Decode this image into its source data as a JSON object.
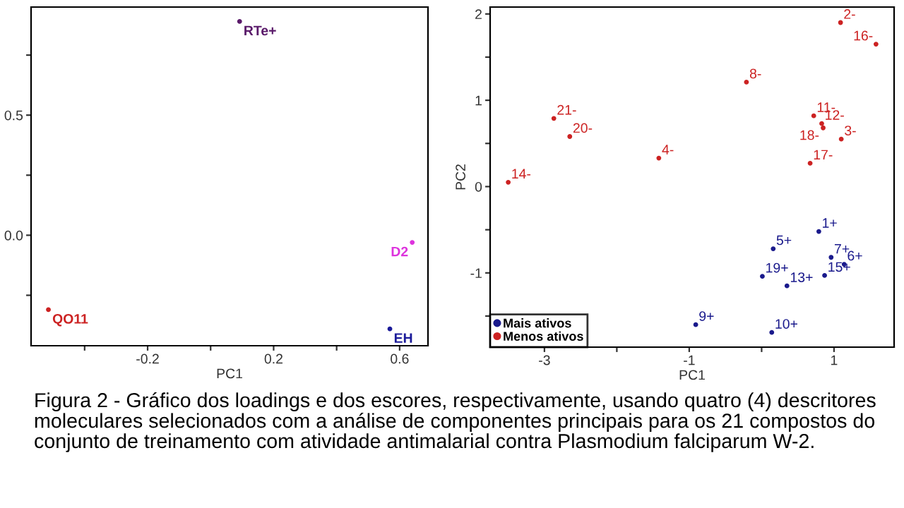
{
  "chart_data": [
    {
      "type": "scatter",
      "xlabel": "PC1",
      "xlim": [
        -0.57,
        0.69
      ],
      "ylim": [
        -0.46,
        0.95
      ],
      "xticks": [
        {
          "value": -0.4,
          "label": null
        },
        -0.2,
        {
          "value": 0,
          "label": null
        },
        0.2,
        {
          "value": 0.4,
          "label": null
        },
        0.6
      ],
      "yticks": [
        {
          "value": -0.25,
          "label": null
        },
        {
          "value": 0,
          "label": "0.0"
        },
        {
          "value": 0.25,
          "label": null
        },
        0.5,
        {
          "value": 0.75,
          "label": null
        }
      ],
      "marker": "circle",
      "grid": false,
      "series": [
        {
          "name": "RTe+",
          "color": "#5a1a6a",
          "x": [
            0.092
          ],
          "values": [
            0.89
          ]
        },
        {
          "name": "QO11",
          "color": "#cc2222",
          "x": [
            -0.515
          ],
          "values": [
            -0.31
          ]
        },
        {
          "name": "D2",
          "color": "#dd33dd",
          "x": [
            0.64
          ],
          "values": [
            -0.03
          ]
        },
        {
          "name": "EH",
          "color": "#1a1a99",
          "x": [
            0.569
          ],
          "values": [
            -0.39
          ]
        }
      ]
    },
    {
      "type": "scatter",
      "xlabel": "PC1",
      "ylabel": "PC2",
      "xlim": [
        -3.75,
        1.83
      ],
      "ylim": [
        -1.86,
        2.08
      ],
      "xticks": [
        -3,
        {
          "value": -2,
          "label": null
        },
        -1,
        {
          "value": 0,
          "label": null
        },
        1
      ],
      "yticks": [
        {
          "value": -1.5,
          "label": null
        },
        -1,
        {
          "value": -0.5,
          "label": null
        },
        0,
        {
          "value": 0.5,
          "label": null
        },
        1,
        {
          "value": 1.5,
          "label": null
        },
        2
      ],
      "marker": "circle",
      "grid": false,
      "legend": "bottom left",
      "series": [
        {
          "name": "Mais ativos",
          "color": "#1a1a8c",
          "x": [
            0.79,
            0.16,
            0.96,
            1.14,
            0.01,
            0.87,
            0.35,
            -0.91,
            0.14
          ],
          "values": [
            -0.52,
            -0.72,
            -0.82,
            -0.9,
            -1.04,
            -1.03,
            -1.15,
            -1.6,
            -1.69
          ]
        },
        {
          "name": "Menos ativos",
          "color": "#cc2222",
          "x": [
            1.09,
            1.58,
            -0.21,
            -2.87,
            -2.65,
            -1.42,
            -3.5,
            0.72,
            0.83,
            0.85,
            1.1,
            0.67
          ],
          "values": [
            1.9,
            1.65,
            1.21,
            0.79,
            0.58,
            0.33,
            0.05,
            0.82,
            0.73,
            0.68,
            0.55,
            0.27
          ]
        }
      ],
      "annotations": [
        {
          "text": "1+",
          "x": 0.79,
          "y": -0.52
        },
        {
          "text": "5+",
          "x": 0.16,
          "y": -0.72
        },
        {
          "text": "7+",
          "x": 0.96,
          "y": -0.82
        },
        {
          "text": "6+",
          "x": 1.14,
          "y": -0.9
        },
        {
          "text": "19+",
          "x": 0.01,
          "y": -1.04
        },
        {
          "text": "15+",
          "x": 0.87,
          "y": -1.03
        },
        {
          "text": "13+",
          "x": 0.35,
          "y": -1.15
        },
        {
          "text": "9+",
          "x": -0.91,
          "y": -1.6
        },
        {
          "text": "10+",
          "x": 0.14,
          "y": -1.69
        },
        {
          "text": "2-",
          "x": 1.09,
          "y": 1.9
        },
        {
          "text": "16-",
          "x": 1.58,
          "y": 1.65
        },
        {
          "text": "8-",
          "x": -0.21,
          "y": 1.21
        },
        {
          "text": "21-",
          "x": -2.87,
          "y": 0.79
        },
        {
          "text": "20-",
          "x": -2.65,
          "y": 0.58
        },
        {
          "text": "4-",
          "x": -1.42,
          "y": 0.33
        },
        {
          "text": "14-",
          "x": -3.5,
          "y": 0.05
        },
        {
          "text": "11-",
          "x": 0.72,
          "y": 0.82
        },
        {
          "text": "12-",
          "x": 0.83,
          "y": 0.73
        },
        {
          "text": "18-",
          "x": 0.85,
          "y": 0.68
        },
        {
          "text": "3-",
          "x": 1.1,
          "y": 0.55
        },
        {
          "text": "17-",
          "x": 0.67,
          "y": 0.27
        },
        "Figura 2 - Gráfico dos loadings e dos escores, respectivamente, usando quatro (4) descritores moleculares selecionados com a análise de componentes principais para os 21 compostos do conjunto de treinamento com atividade antimalarial contra Plasmodium falciparum W-2."
      ]
    }
  ]
}
